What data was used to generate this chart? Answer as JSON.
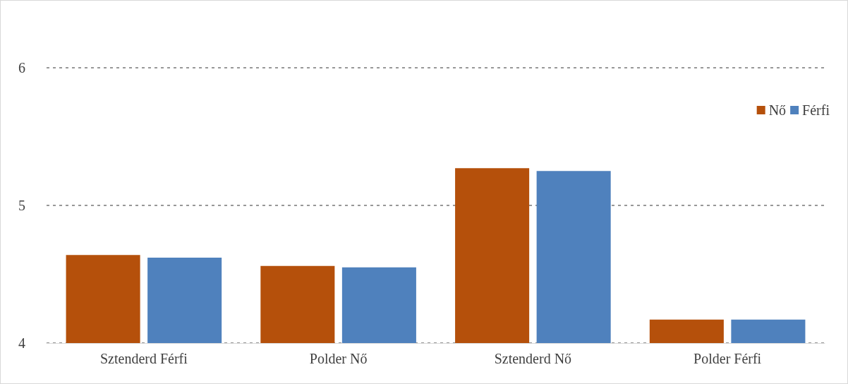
{
  "chart_data": {
    "type": "bar",
    "categories": [
      "Sztenderd Férfi",
      "Polder Nő",
      "Sztenderd Nő",
      "Polder Férfi"
    ],
    "series": [
      {
        "name": "Nő",
        "color": "#b5500b",
        "values": [
          4.64,
          4.56,
          5.27,
          4.17
        ]
      },
      {
        "name": "Férfi",
        "color": "#4f81bd",
        "values": [
          4.62,
          4.55,
          5.25,
          4.17
        ]
      }
    ],
    "ylim": [
      4,
      6
    ],
    "yticks": [
      4,
      5,
      6
    ],
    "grid": "y",
    "legend": "top right"
  }
}
